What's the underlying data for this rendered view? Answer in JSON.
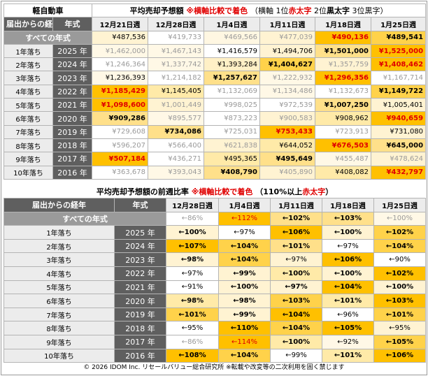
{
  "section1": {
    "corner_title": "軽自動車",
    "title_main": "平均売却予想額",
    "title_note": "※横軸比較で着色",
    "legend_open": "（横軸 1位",
    "legend_first": "赤太字",
    "legend_second_pre": " 2位",
    "legend_second": "黒太字",
    "legend_third": " 3位黒字）",
    "col_age": "届出からの経年",
    "col_year": "年式",
    "dates": [
      "12月21日週",
      "12月28日週",
      "1月4日週",
      "1月11日週",
      "1月18日週",
      "1月25日週"
    ],
    "all_label": "すべての年式",
    "all_row": [
      {
        "v": "¥487,536",
        "s": "n",
        "bg": "#fff3d2"
      },
      {
        "v": "¥419,733",
        "s": "g",
        "bg": "#ffffff"
      },
      {
        "v": "¥469,566",
        "s": "g",
        "bg": "#fff7e2"
      },
      {
        "v": "¥477,039",
        "s": "g",
        "bg": "#fff3d2"
      },
      {
        "v": "¥490,136",
        "s": "r",
        "bg": "#ffc000"
      },
      {
        "v": "¥489,541",
        "s": "b",
        "bg": "#ffd24a"
      }
    ],
    "rows": [
      {
        "age": "1年落ち",
        "year": "2025 年",
        "cells": [
          {
            "v": "¥1,462,000",
            "s": "g",
            "bg": "#fff8e6"
          },
          {
            "v": "¥1,467,143",
            "s": "g",
            "bg": "#fff8e6"
          },
          {
            "v": "¥1,416,579",
            "s": "n",
            "bg": "#ffffff"
          },
          {
            "v": "¥1,494,706",
            "s": "n",
            "bg": "#fff3d2"
          },
          {
            "v": "¥1,501,000",
            "s": "b",
            "bg": "#ffe08a"
          },
          {
            "v": "¥1,525,000",
            "s": "r",
            "bg": "#ffc000"
          }
        ]
      },
      {
        "age": "2年落ち",
        "year": "2024 年",
        "cells": [
          {
            "v": "¥1,246,364",
            "s": "g",
            "bg": "#ffffff"
          },
          {
            "v": "¥1,337,742",
            "s": "g",
            "bg": "#fff8e6"
          },
          {
            "v": "¥1,393,284",
            "s": "n",
            "bg": "#fff0c6"
          },
          {
            "v": "¥1,404,627",
            "s": "b",
            "bg": "#ffd24a"
          },
          {
            "v": "¥1,357,759",
            "s": "g",
            "bg": "#fff3d2"
          },
          {
            "v": "¥1,408,462",
            "s": "r",
            "bg": "#ffc000"
          }
        ]
      },
      {
        "age": "3年落ち",
        "year": "2023 年",
        "cells": [
          {
            "v": "¥1,236,393",
            "s": "n",
            "bg": "#fff8e6"
          },
          {
            "v": "¥1,214,182",
            "s": "g",
            "bg": "#ffffff"
          },
          {
            "v": "¥1,257,627",
            "s": "b",
            "bg": "#ffe08a"
          },
          {
            "v": "¥1,222,932",
            "s": "g",
            "bg": "#fff8e6"
          },
          {
            "v": "¥1,296,356",
            "s": "r",
            "bg": "#ffc000"
          },
          {
            "v": "¥1,167,714",
            "s": "g",
            "bg": "#ffffff"
          }
        ]
      },
      {
        "age": "4年落ち",
        "year": "2022 年",
        "cells": [
          {
            "v": "¥1,185,429",
            "s": "r",
            "bg": "#ffc000"
          },
          {
            "v": "¥1,145,405",
            "s": "n",
            "bg": "#ffeaa8"
          },
          {
            "v": "¥1,132,069",
            "s": "g",
            "bg": "#ffffff"
          },
          {
            "v": "¥1,134,486",
            "s": "g",
            "bg": "#fff8e6"
          },
          {
            "v": "¥1,132,673",
            "s": "g",
            "bg": "#ffffff"
          },
          {
            "v": "¥1,149,722",
            "s": "b",
            "bg": "#ffd24a"
          }
        ]
      },
      {
        "age": "5年落ち",
        "year": "2021 年",
        "cells": [
          {
            "v": "¥1,098,600",
            "s": "r",
            "bg": "#ffc000"
          },
          {
            "v": "¥1,001,449",
            "s": "g",
            "bg": "#fff3d2"
          },
          {
            "v": "¥998,025",
            "s": "g",
            "bg": "#ffffff"
          },
          {
            "v": "¥972,539",
            "s": "g",
            "bg": "#ffffff"
          },
          {
            "v": "¥1,007,250",
            "s": "b",
            "bg": "#ffe08a"
          },
          {
            "v": "¥1,005,401",
            "s": "n",
            "bg": "#fff3d2"
          }
        ]
      },
      {
        "age": "6年落ち",
        "year": "2020 年",
        "cells": [
          {
            "v": "¥909,286",
            "s": "b",
            "bg": "#ffe08a"
          },
          {
            "v": "¥895,577",
            "s": "g",
            "bg": "#fff8e6"
          },
          {
            "v": "¥873,223",
            "s": "g",
            "bg": "#ffffff"
          },
          {
            "v": "¥900,583",
            "s": "g",
            "bg": "#fff3d2"
          },
          {
            "v": "¥908,962",
            "s": "n",
            "bg": "#ffeaa8"
          },
          {
            "v": "¥940,659",
            "s": "r",
            "bg": "#ffc000"
          }
        ]
      },
      {
        "age": "7年落ち",
        "year": "2019 年",
        "cells": [
          {
            "v": "¥729,608",
            "s": "g",
            "bg": "#ffffff"
          },
          {
            "v": "¥734,086",
            "s": "b",
            "bg": "#ffe08a"
          },
          {
            "v": "¥725,031",
            "s": "g",
            "bg": "#ffffff"
          },
          {
            "v": "¥753,433",
            "s": "r",
            "bg": "#ffc000"
          },
          {
            "v": "¥723,913",
            "s": "g",
            "bg": "#ffffff"
          },
          {
            "v": "¥731,080",
            "s": "n",
            "bg": "#fff3d2"
          }
        ]
      },
      {
        "age": "8年落ち",
        "year": "2018 年",
        "cells": [
          {
            "v": "¥596,207",
            "s": "g",
            "bg": "#ffffff"
          },
          {
            "v": "¥566,400",
            "s": "g",
            "bg": "#ffffff"
          },
          {
            "v": "¥621,838",
            "s": "g",
            "bg": "#fff3d2"
          },
          {
            "v": "¥644,052",
            "s": "n",
            "bg": "#ffeaa8"
          },
          {
            "v": "¥676,503",
            "s": "r",
            "bg": "#ffc000"
          },
          {
            "v": "¥645,000",
            "s": "b",
            "bg": "#ffe08a"
          }
        ]
      },
      {
        "age": "9年落ち",
        "year": "2017 年",
        "cells": [
          {
            "v": "¥507,184",
            "s": "r",
            "bg": "#ffc000"
          },
          {
            "v": "¥436,271",
            "s": "g",
            "bg": "#ffffff"
          },
          {
            "v": "¥495,365",
            "s": "n",
            "bg": "#ffeaa8"
          },
          {
            "v": "¥495,649",
            "s": "b",
            "bg": "#ffe08a"
          },
          {
            "v": "¥455,487",
            "s": "g",
            "bg": "#fff8e6"
          },
          {
            "v": "¥478,624",
            "s": "g",
            "bg": "#fff3d2"
          }
        ]
      },
      {
        "age": "10年落ち",
        "year": "2016 年",
        "cells": [
          {
            "v": "¥363,678",
            "s": "g",
            "bg": "#ffffff"
          },
          {
            "v": "¥393,043",
            "s": "g",
            "bg": "#fff8e6"
          },
          {
            "v": "¥408,790",
            "s": "b",
            "bg": "#ffe08a"
          },
          {
            "v": "¥405,890",
            "s": "g",
            "bg": "#fff3d2"
          },
          {
            "v": "¥408,082",
            "s": "n",
            "bg": "#ffeaa8"
          },
          {
            "v": "¥432,797",
            "s": "r",
            "bg": "#ffc000"
          }
        ]
      }
    ]
  },
  "section2": {
    "title_main": "平均売却予想額の前週比率",
    "title_note": "※横軸比較で着色",
    "legend_open": "（110%以上",
    "legend_red": "赤太字",
    "legend_close": "）",
    "col_age": "届出からの経年",
    "col_year": "年式",
    "dates": [
      "12月28日週",
      "1月4日週",
      "1月11日週",
      "1月18日週",
      "1月25日週"
    ],
    "all_label": "すべての年式",
    "all_row": [
      {
        "v": "←86%",
        "s": "g",
        "bg": "#ffffff"
      },
      {
        "v": "←112%",
        "s": "red",
        "bg": "#ffc000"
      },
      {
        "v": "←102%",
        "s": "b",
        "bg": "#ffe08a"
      },
      {
        "v": "←103%",
        "s": "b",
        "bg": "#ffe08a"
      },
      {
        "v": "←100%",
        "s": "g",
        "bg": "#fff8e6"
      }
    ],
    "rows": [
      {
        "age": "1年落ち",
        "year": "2025 年",
        "cells": [
          {
            "v": "←100%",
            "s": "b",
            "bg": "#fff3d2"
          },
          {
            "v": "←97%",
            "s": "n",
            "bg": "#ffffff"
          },
          {
            "v": "←106%",
            "s": "b",
            "bg": "#ffc000"
          },
          {
            "v": "←100%",
            "s": "b",
            "bg": "#fff3d2"
          },
          {
            "v": "←102%",
            "s": "b",
            "bg": "#ffd24a"
          }
        ]
      },
      {
        "age": "2年落ち",
        "year": "2024 年",
        "cells": [
          {
            "v": "←107%",
            "s": "b",
            "bg": "#ffc000"
          },
          {
            "v": "←104%",
            "s": "b",
            "bg": "#ffd24a"
          },
          {
            "v": "←101%",
            "s": "b",
            "bg": "#ffe08a"
          },
          {
            "v": "←97%",
            "s": "n",
            "bg": "#ffffff"
          },
          {
            "v": "←104%",
            "s": "b",
            "bg": "#ffd24a"
          }
        ]
      },
      {
        "age": "3年落ち",
        "year": "2023 年",
        "cells": [
          {
            "v": "←98%",
            "s": "b",
            "bg": "#fff3d2"
          },
          {
            "v": "←104%",
            "s": "b",
            "bg": "#ffd24a"
          },
          {
            "v": "←97%",
            "s": "n",
            "bg": "#fff3d2"
          },
          {
            "v": "←106%",
            "s": "b",
            "bg": "#ffc000"
          },
          {
            "v": "←90%",
            "s": "n",
            "bg": "#ffffff"
          }
        ]
      },
      {
        "age": "4年落ち",
        "year": "2022 年",
        "cells": [
          {
            "v": "←97%",
            "s": "n",
            "bg": "#ffffff"
          },
          {
            "v": "←99%",
            "s": "b",
            "bg": "#fff3d2"
          },
          {
            "v": "←100%",
            "s": "b",
            "bg": "#ffeaa8"
          },
          {
            "v": "←100%",
            "s": "b",
            "bg": "#fff3d2"
          },
          {
            "v": "←102%",
            "s": "b",
            "bg": "#ffc000"
          }
        ]
      },
      {
        "age": "5年落ち",
        "year": "2021 年",
        "cells": [
          {
            "v": "←91%",
            "s": "n",
            "bg": "#ffffff"
          },
          {
            "v": "←100%",
            "s": "b",
            "bg": "#fff3d2"
          },
          {
            "v": "←97%",
            "s": "b",
            "bg": "#fff3d2"
          },
          {
            "v": "←104%",
            "s": "b",
            "bg": "#ffc000"
          },
          {
            "v": "←100%",
            "s": "b",
            "bg": "#fff3d2"
          }
        ]
      },
      {
        "age": "6年落ち",
        "year": "2020 年",
        "cells": [
          {
            "v": "←98%",
            "s": "b",
            "bg": "#ffeaa8"
          },
          {
            "v": "←98%",
            "s": "b",
            "bg": "#fff3d2"
          },
          {
            "v": "←103%",
            "s": "b",
            "bg": "#ffd24a"
          },
          {
            "v": "←101%",
            "s": "b",
            "bg": "#ffeaa8"
          },
          {
            "v": "←103%",
            "s": "b",
            "bg": "#ffc000"
          }
        ]
      },
      {
        "age": "7年落ち",
        "year": "2019 年",
        "cells": [
          {
            "v": "←101%",
            "s": "b",
            "bg": "#ffd24a"
          },
          {
            "v": "←99%",
            "s": "b",
            "bg": "#fff3d2"
          },
          {
            "v": "←104%",
            "s": "b",
            "bg": "#ffc000"
          },
          {
            "v": "←96%",
            "s": "n",
            "bg": "#ffffff"
          },
          {
            "v": "←101%",
            "s": "b",
            "bg": "#ffd24a"
          }
        ]
      },
      {
        "age": "8年落ち",
        "year": "2018 年",
        "cells": [
          {
            "v": "←95%",
            "s": "n",
            "bg": "#ffffff"
          },
          {
            "v": "←110%",
            "s": "b",
            "bg": "#ffc000"
          },
          {
            "v": "←104%",
            "s": "b",
            "bg": "#ffd24a"
          },
          {
            "v": "←105%",
            "s": "b",
            "bg": "#ffc000"
          },
          {
            "v": "←95%",
            "s": "n",
            "bg": "#fff3d2"
          }
        ]
      },
      {
        "age": "9年落ち",
        "year": "2017 年",
        "cells": [
          {
            "v": "←86%",
            "s": "g",
            "bg": "#ffffff"
          },
          {
            "v": "←114%",
            "s": "red",
            "bg": "#ffc000"
          },
          {
            "v": "←100%",
            "s": "b",
            "bg": "#ffeaa8"
          },
          {
            "v": "←92%",
            "s": "n",
            "bg": "#fff8e6"
          },
          {
            "v": "←105%",
            "s": "b",
            "bg": "#ffd24a"
          }
        ]
      },
      {
        "age": "10年落ち",
        "year": "2016 年",
        "cells": [
          {
            "v": "←108%",
            "s": "b",
            "bg": "#ffc000"
          },
          {
            "v": "←104%",
            "s": "b",
            "bg": "#ffd24a"
          },
          {
            "v": "←99%",
            "s": "n",
            "bg": "#ffffff"
          },
          {
            "v": "←101%",
            "s": "b",
            "bg": "#ffeaa8"
          },
          {
            "v": "←106%",
            "s": "b",
            "bg": "#ffc000"
          }
        ]
      }
    ]
  },
  "footer": "© 2026 IDOM Inc. リセールバリュー総合研究所 ※転載や改変等の二次利用を固く禁じます",
  "colors": {
    "header_dark": "#5f5f5f",
    "all_row": "#9a9a9a",
    "rank1": "#ffc000",
    "red_text": "#e00000"
  }
}
